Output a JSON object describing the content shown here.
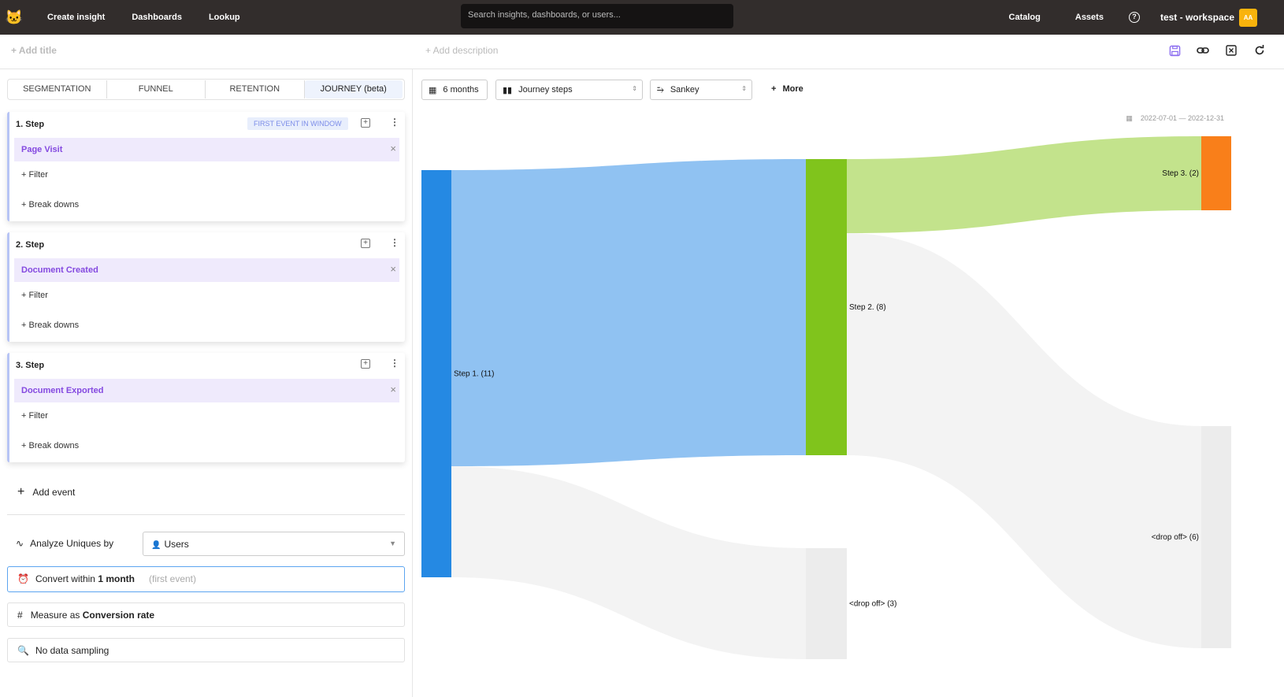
{
  "topbar": {
    "nav": [
      "Create insight",
      "Dashboards",
      "Lookup"
    ],
    "search_placeholder": "Search insights, dashboards, or users...",
    "catalog": "Catalog",
    "assets": "Assets",
    "help": "?",
    "workspace": "test - workspace",
    "avatar": "AA"
  },
  "subbar": {
    "add_title": "+ Add title",
    "add_description": "+ Add description",
    "tools": [
      "save-icon",
      "link-icon",
      "close-box-icon",
      "refresh-icon"
    ]
  },
  "tabs": [
    "SEGMENTATION",
    "FUNNEL",
    "RETENTION",
    "JOURNEY (beta)"
  ],
  "active_tab": "JOURNEY (beta)",
  "steps": [
    {
      "title": "1.  Step",
      "badge": "FIRST EVENT IN WINDOW",
      "event": "Page Visit",
      "filter": "+ Filter",
      "breakdowns": "+ Break downs"
    },
    {
      "title": "2.  Step",
      "event": "Document Created",
      "filter": "+ Filter",
      "breakdowns": "+ Break downs"
    },
    {
      "title": "3.  Step",
      "event": "Document Exported",
      "filter": "+ Filter",
      "breakdowns": "+ Break downs"
    }
  ],
  "add_event": "Add event",
  "analyze": {
    "label": "Analyze Uniques by",
    "value": "Users"
  },
  "convert": {
    "prefix": "Convert within",
    "value": "1 month",
    "note": "(first event)"
  },
  "measure": {
    "prefix": "Measure as",
    "value": "Conversion rate"
  },
  "sampling": "No data sampling",
  "controls": {
    "range": "6 months",
    "metric": "Journey steps",
    "viz": "Sankey",
    "more": "More"
  },
  "date_range": "2022-07-01 — 2022-12-31",
  "chart_data": {
    "type": "sankey",
    "nodes": [
      {
        "id": "s1",
        "label": "Step 1.  (11)",
        "value": 11,
        "column": 0,
        "color": "#2589e3"
      },
      {
        "id": "s2",
        "label": "Step 2.  (8)",
        "value": 8,
        "column": 1,
        "color": "#80c41c"
      },
      {
        "id": "d1",
        "label": "<drop off>  (3)",
        "value": 3,
        "column": 1,
        "color": "#ececec"
      },
      {
        "id": "s3",
        "label": "Step 3.  (2)",
        "value": 2,
        "column": 2,
        "color": "#f97f1a"
      },
      {
        "id": "d2",
        "label": "<drop off>  (6)",
        "value": 6,
        "column": 2,
        "color": "#ececec"
      }
    ],
    "links": [
      {
        "source": "s1",
        "target": "s2",
        "value": 8,
        "color": "#90c2f2"
      },
      {
        "source": "s1",
        "target": "d1",
        "value": 3,
        "color": "#f3f3f3"
      },
      {
        "source": "s2",
        "target": "s3",
        "value": 2,
        "color": "#c3e38c"
      },
      {
        "source": "s2",
        "target": "d2",
        "value": 6,
        "color": "#f3f3f3"
      }
    ]
  }
}
